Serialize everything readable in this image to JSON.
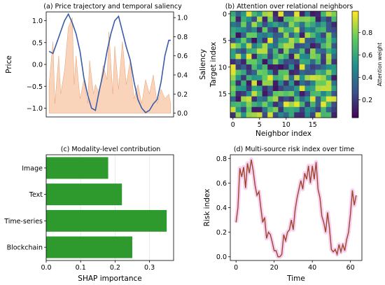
{
  "chart_data": [
    {
      "id": "a",
      "type": "line",
      "title": "(a) Price trajectory and temporal saliency",
      "ylabel": "Price",
      "y2label": "Saliency",
      "ylim": [
        -1.2,
        1.2
      ],
      "y2lim": [
        -0.04,
        1.06
      ],
      "xlim": [
        0,
        63
      ],
      "yticks": [
        -1.0,
        -0.5,
        0.0,
        0.5,
        1.0
      ],
      "y2ticks": [
        0.0,
        0.2,
        0.4,
        0.6,
        0.8,
        1.0
      ],
      "series": [
        {
          "role": "price",
          "color": "#3a5ca8",
          "x": [
            0,
            2,
            4,
            6,
            8,
            10,
            12,
            14,
            16,
            18,
            20,
            22,
            24,
            26,
            28,
            30,
            32,
            34,
            36,
            38,
            40,
            42,
            44,
            46,
            48,
            50,
            52,
            54,
            56,
            58,
            60,
            62,
            63
          ],
          "values": [
            0.3,
            0.25,
            0.5,
            0.75,
            1.0,
            1.15,
            0.95,
            0.7,
            0.3,
            -0.3,
            -0.7,
            -1.0,
            -1.05,
            -0.6,
            -0.2,
            0.3,
            0.7,
            1.0,
            1.1,
            0.75,
            0.4,
            0.1,
            -0.4,
            -0.8,
            -1.0,
            -1.1,
            -1.05,
            -0.9,
            -0.8,
            -0.4,
            0.2,
            0.55,
            0.55
          ]
        },
        {
          "role": "saliency",
          "color": "#f4b183",
          "x": [
            0,
            2,
            3,
            5,
            6,
            8,
            10,
            12,
            13,
            14,
            16,
            18,
            20,
            21,
            23,
            24,
            26,
            28,
            30,
            31,
            33,
            34,
            36,
            38,
            40,
            42,
            44,
            46,
            48,
            50,
            52,
            54,
            56,
            58,
            60,
            62,
            63
          ],
          "values": [
            0.3,
            0.75,
            0.1,
            0.6,
            0.2,
            0.45,
            0.9,
            1.0,
            0.3,
            0.6,
            0.15,
            0.35,
            0.1,
            0.55,
            0.2,
            0.3,
            0.2,
            0.5,
            0.35,
            0.85,
            0.2,
            0.7,
            0.25,
            0.75,
            0.3,
            0.55,
            0.15,
            0.3,
            0.1,
            0.35,
            0.2,
            0.4,
            0.1,
            0.25,
            0.15,
            0.2,
            0.1
          ]
        }
      ]
    },
    {
      "id": "b",
      "type": "heatmap",
      "title": "(b) Attention over relational neighbors",
      "xlabel": "Neighbor index",
      "ylabel": "Target index",
      "colorbar_label": "Attention weight",
      "xticks": [
        0,
        5,
        10,
        15
      ],
      "yticks": [
        0,
        5,
        10,
        15
      ],
      "cbar_ticks": [
        0.2,
        0.4,
        0.6,
        0.8
      ],
      "vmin": 0.0,
      "vmax": 1.0,
      "rows": 20,
      "cols": 20,
      "seed": 7
    },
    {
      "id": "c",
      "type": "bar",
      "orientation": "horizontal",
      "title": "(c) Modality-level contribution",
      "xlabel": "SHAP importance",
      "xlim": [
        0,
        0.37
      ],
      "xticks": [
        0.0,
        0.1,
        0.2,
        0.3
      ],
      "categories": [
        "Blockchain",
        "Time-series",
        "Text",
        "Image"
      ],
      "values": [
        0.25,
        0.35,
        0.22,
        0.18
      ],
      "color": "#2e9a2e"
    },
    {
      "id": "d",
      "type": "line",
      "title": "(d) Multi-source risk index over time",
      "xlabel": "Time",
      "ylabel": "Risk index",
      "xlim": [
        -3,
        66
      ],
      "ylim": [
        -0.03,
        0.83
      ],
      "xticks": [
        0,
        20,
        40,
        60
      ],
      "yticks": [
        0.0,
        0.2,
        0.4,
        0.6,
        0.8
      ],
      "color": "#a0442c",
      "x": [
        0,
        1,
        2,
        3,
        4,
        5,
        6,
        7,
        8,
        9,
        10,
        11,
        12,
        13,
        14,
        15,
        16,
        17,
        18,
        19,
        20,
        21,
        22,
        23,
        24,
        25,
        26,
        27,
        28,
        29,
        30,
        31,
        32,
        33,
        34,
        35,
        36,
        37,
        38,
        39,
        40,
        41,
        42,
        43,
        44,
        45,
        46,
        47,
        48,
        49,
        50,
        51,
        52,
        53,
        54,
        55,
        56,
        57,
        58,
        59,
        60,
        61,
        62,
        63
      ],
      "values": [
        0.28,
        0.4,
        0.72,
        0.65,
        0.73,
        0.56,
        0.76,
        0.68,
        0.79,
        0.7,
        0.58,
        0.5,
        0.53,
        0.4,
        0.28,
        0.32,
        0.15,
        0.2,
        0.18,
        0.12,
        0.05,
        0.05,
        0.0,
        0.0,
        0.02,
        0.18,
        0.13,
        0.2,
        0.22,
        0.3,
        0.22,
        0.38,
        0.48,
        0.55,
        0.62,
        0.55,
        0.68,
        0.63,
        0.74,
        0.6,
        0.74,
        0.63,
        0.77,
        0.55,
        0.48,
        0.33,
        0.28,
        0.2,
        0.36,
        0.23,
        0.06,
        0.04,
        0.06,
        0.02,
        0.1,
        0.04,
        0.1,
        0.05,
        0.14,
        0.2,
        0.35,
        0.54,
        0.42,
        0.5
      ]
    }
  ]
}
